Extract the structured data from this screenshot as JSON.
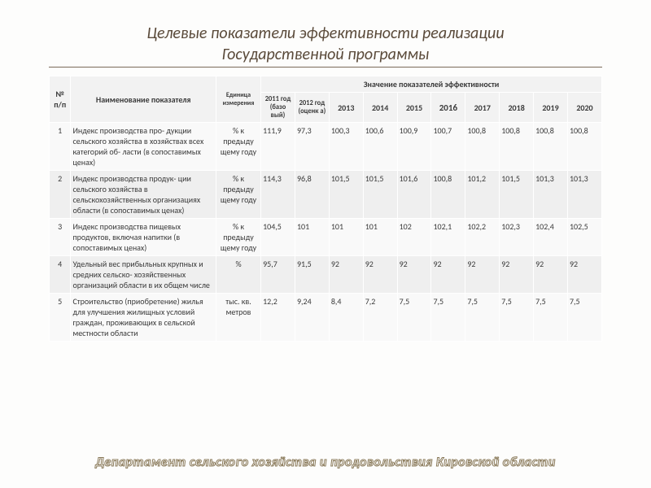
{
  "title_line1": "Целевые показатели эффективности реализации",
  "title_line2": "Государственной программы",
  "title_fontsize": "20px",
  "header": {
    "col_num": "№ п/п",
    "col_name": "Наименование показателя",
    "col_unit": "Единица измерения",
    "col_span": "Значение показателей эффективности",
    "years": [
      "2011 год (базо вый)",
      "2012 год (оценк а)",
      "2013",
      "2014",
      "2015",
      "2016",
      "2017",
      "2018",
      "2019",
      "2020"
    ]
  },
  "rows": [
    {
      "n": "1",
      "name": "Индекс производства про- дукции сельского хозяйства в хозяйствах всех категорий об- ласти (в сопоставимых ценах)",
      "unit": "% к предыду щему году",
      "vals": [
        "111,9",
        "97,3",
        "100,3",
        "100,6",
        "100,9",
        "100,7",
        "100,8",
        "100,8",
        "100,8",
        "100,8"
      ]
    },
    {
      "n": "2",
      "name": "Индекс производства продук- ции сельского хозяйства в сельскохозяйственных организациях области (в сопоставимых ценах)",
      "unit": "% к предыду щему году",
      "vals": [
        "114,3",
        "96,8",
        "101,5",
        "101,5",
        "101,6",
        "100,8",
        "101,2",
        "101,5",
        "101,3",
        "101,3"
      ]
    },
    {
      "n": "3",
      "name": "Индекс производства пищевых продуктов, включая напитки (в сопоставимых ценах)",
      "unit": "% к предыду щему году",
      "vals": [
        "104,5",
        "101",
        "101",
        "101",
        "102",
        "102,1",
        "102,2",
        "102,3",
        "102,4",
        "102,5"
      ]
    },
    {
      "n": "4",
      "name": "Удельный вес прибыльных крупных и средних сельско- хозяйственных организаций области в их общем числе",
      "unit": "%",
      "vals": [
        "95,7",
        "91,5",
        "92",
        "92",
        "92",
        "92",
        "92",
        "92",
        "92",
        "92"
      ]
    },
    {
      "n": "5",
      "name": "Строительство (приобретение) жилья для улучшения жилищных условий граждан, проживающих в сельской местности области",
      "unit": "тыс. кв. метров",
      "vals": [
        "12,2",
        "9,24",
        "8,4",
        "7,2",
        "7,5",
        "7,5",
        "7,5",
        "7,5",
        "7,5",
        "7,5"
      ]
    }
  ],
  "footer": "Департамент сельского хозяйства и продовольствия Кировской области",
  "footer_fontsize": "16px",
  "colors": {
    "background": "#fdfdfc",
    "title": "#5a4a3a",
    "header_bg": "#f2f2f2",
    "row_odd": "#f9f9f9",
    "row_even": "#efefef",
    "border": "#ffffff",
    "footer_stroke": "#8a7a5a"
  }
}
